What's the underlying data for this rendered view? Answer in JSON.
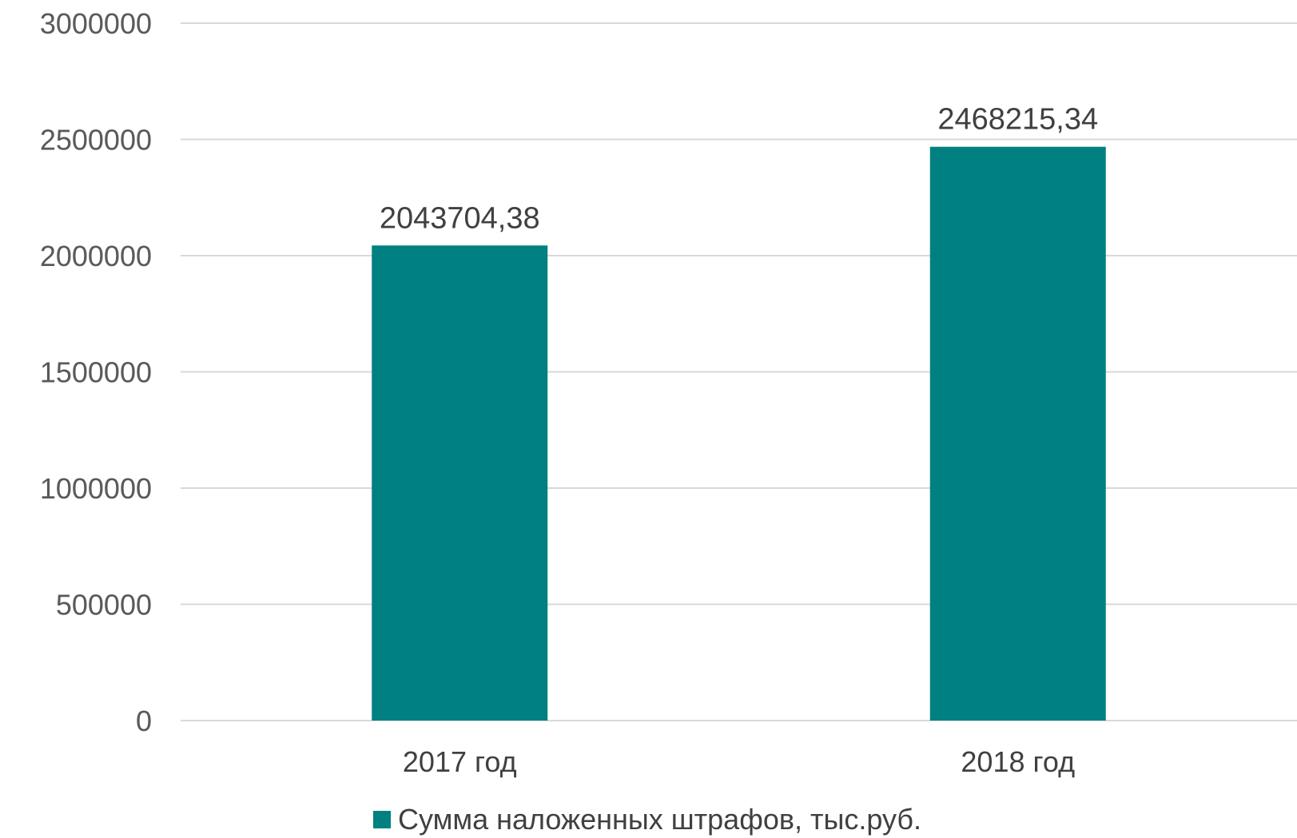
{
  "chart_data": {
    "type": "bar",
    "categories": [
      "2017 год",
      "2018 год"
    ],
    "series": [
      {
        "name": "Сумма наложенных штрафов, тыс.руб.",
        "values": [
          2043704.38,
          2468215.34
        ],
        "value_labels": [
          "2043704,38",
          "2468215,34"
        ],
        "color": "#008080"
      }
    ],
    "yticks": [
      0,
      500000,
      1000000,
      1500000,
      2000000,
      2500000,
      3000000
    ],
    "ylim": [
      0,
      3000000
    ],
    "grid": true,
    "legend_position": "bottom"
  }
}
